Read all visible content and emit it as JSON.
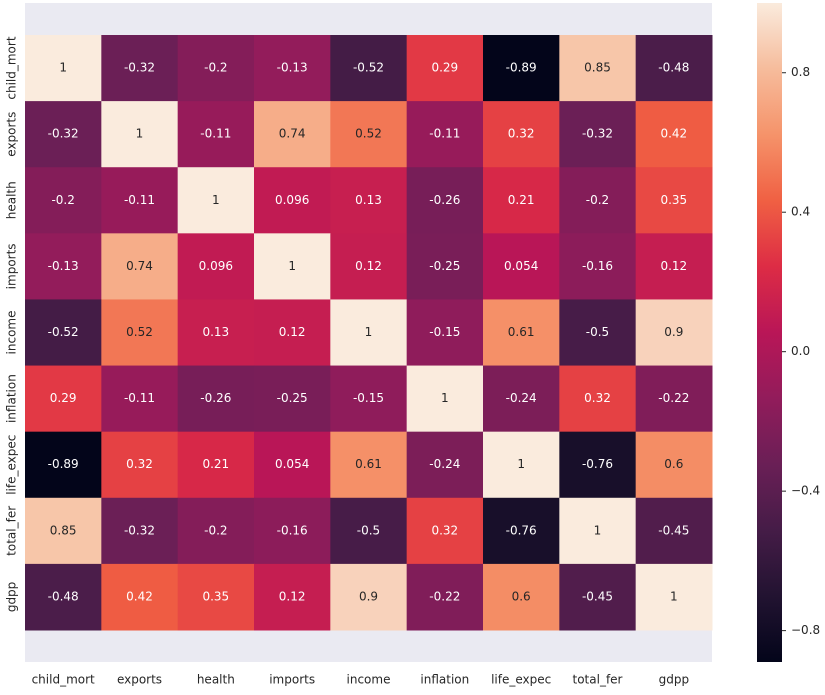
{
  "chart_data": {
    "type": "heatmap",
    "categories": [
      "child_mort",
      "exports",
      "health",
      "imports",
      "income",
      "inflation",
      "life_expec",
      "total_fer",
      "gdpp"
    ],
    "y_categories": [
      "child_mort",
      "exports",
      "health",
      "imports",
      "income",
      "inflation",
      "life_expec",
      "total_fer",
      "gdpp"
    ],
    "values": [
      [
        1,
        -0.32,
        -0.2,
        -0.13,
        -0.52,
        0.29,
        -0.89,
        0.85,
        -0.48
      ],
      [
        -0.32,
        1,
        -0.11,
        0.74,
        0.52,
        -0.11,
        0.32,
        -0.32,
        0.42
      ],
      [
        -0.2,
        -0.11,
        1,
        0.096,
        0.13,
        -0.26,
        0.21,
        -0.2,
        0.35
      ],
      [
        -0.13,
        0.74,
        0.096,
        1,
        0.12,
        -0.25,
        0.054,
        -0.16,
        0.12
      ],
      [
        -0.52,
        0.52,
        0.13,
        0.12,
        1,
        -0.15,
        0.61,
        -0.5,
        0.9
      ],
      [
        0.29,
        -0.11,
        -0.26,
        -0.25,
        -0.15,
        1,
        -0.24,
        0.32,
        -0.22
      ],
      [
        -0.89,
        0.32,
        0.21,
        0.054,
        0.61,
        -0.24,
        1,
        -0.76,
        0.6
      ],
      [
        0.85,
        -0.32,
        -0.2,
        -0.16,
        -0.5,
        0.32,
        -0.76,
        1,
        -0.45
      ],
      [
        -0.48,
        0.42,
        0.35,
        0.12,
        0.9,
        -0.22,
        0.6,
        -0.45,
        1
      ]
    ],
    "zlim": [
      -0.89,
      1
    ],
    "colorbar_ticks": [
      {
        "value": -0.8,
        "label": "−0.8"
      },
      {
        "value": -0.4,
        "label": "−0.4"
      },
      {
        "value": 0,
        "label": "0.0"
      },
      0.4,
      0.8
    ],
    "colorscale": [
      "#03051a",
      "#221331",
      "#451c47",
      "#6a1f56",
      "#921c5b",
      "#b91657",
      "#dd2c45",
      "#f06043",
      "#f5936a",
      "#f6bc9c",
      "#faebdd"
    ]
  }
}
